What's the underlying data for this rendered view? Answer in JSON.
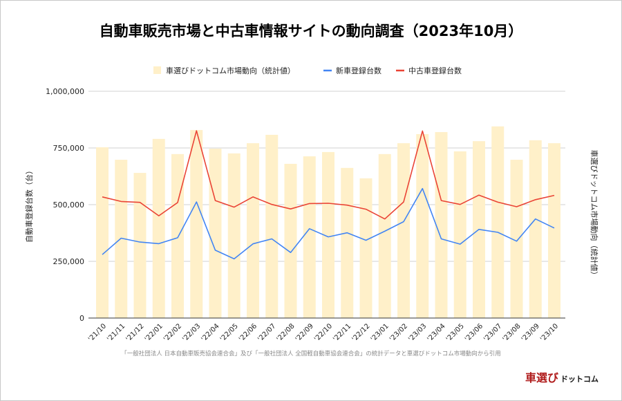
{
  "chart_data": {
    "type": "bar+line",
    "title": "自動車販売市場と中古車情報サイトの動向調査（2023年10月）",
    "ylabel": "自動車登録台数（台）",
    "y2label": "車選びドットコム市場動向（統計値）",
    "ylim": [
      0,
      1000000
    ],
    "yticks": [
      "0",
      "250,000",
      "500,000",
      "750,000",
      "1,000,000"
    ],
    "ytick_values": [
      0,
      250000,
      500000,
      750000,
      1000000
    ],
    "grid": true,
    "legend_position": "top",
    "categories": [
      "'21/10",
      "'21/11",
      "'21/12",
      "'22/01",
      "'22/02",
      "'22/03",
      "'22/04",
      "'22/05",
      "'22/06",
      "'22/07",
      "'22/08",
      "'22/09",
      "'22/10",
      "'22/11",
      "'22/12",
      "'23/01",
      "'23/02",
      "'23/03",
      "'23/04",
      "'23/05",
      "'23/06",
      "'23/07",
      "'23/08",
      "'23/09",
      "'23/10"
    ],
    "series": [
      {
        "name": "車選びドットコム市場動向（統計値）",
        "type": "bar",
        "color": "#fff0c9",
        "values": [
          753000,
          698000,
          640000,
          790000,
          723000,
          829000,
          747000,
          726000,
          771000,
          808000,
          680000,
          713000,
          732000,
          662000,
          616000,
          723000,
          771000,
          811000,
          820000,
          735000,
          780000,
          845000,
          698000,
          784000,
          771000
        ]
      },
      {
        "name": "新車登録台数",
        "type": "line",
        "color": "#4285f4",
        "values": [
          280000,
          352000,
          335000,
          328000,
          354000,
          512000,
          299000,
          261000,
          327000,
          349000,
          289000,
          394000,
          358000,
          376000,
          343000,
          383000,
          425000,
          571000,
          349000,
          326000,
          391000,
          378000,
          339000,
          437000,
          397000
        ]
      },
      {
        "name": "中古車登録台数",
        "type": "line",
        "color": "#ea4335",
        "values": [
          534000,
          514000,
          510000,
          451000,
          509000,
          826000,
          518000,
          489000,
          534000,
          501000,
          481000,
          505000,
          506000,
          498000,
          480000,
          437000,
          512000,
          825000,
          518000,
          501000,
          542000,
          511000,
          491000,
          522000,
          541000
        ]
      }
    ]
  },
  "footer": {
    "source": "「一般社団法人 日本自動車販売協会連合会」及び「一般社団法人 全国軽自動車協会連合会」の統計データと車選びドットコム市場動向から引用",
    "logo_main": "車選び",
    "logo_sub": "ドットコム"
  }
}
